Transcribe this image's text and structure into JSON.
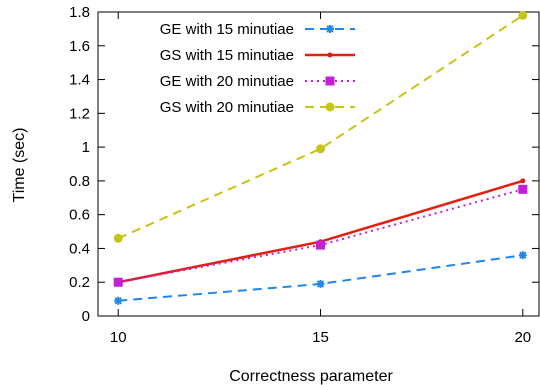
{
  "chart_data": {
    "type": "line",
    "xlabel": "Correctness parameter",
    "ylabel": "Time (sec)",
    "x": [
      10,
      15,
      20
    ],
    "xticks": [
      "10",
      "15",
      "20"
    ],
    "xlim": [
      9.5,
      20.4
    ],
    "ylim": [
      0,
      1.8
    ],
    "yticks": [
      "0",
      "0.2",
      "0.4",
      "0.6",
      "0.8",
      "1",
      "1.2",
      "1.4",
      "1.6",
      "1.8"
    ],
    "grid": false,
    "legend_position": "top-left",
    "series": [
      {
        "name": "GE with 15 minutiae",
        "values": [
          0.09,
          0.19,
          0.36
        ],
        "color": "#1f87e8",
        "dash": "dashed",
        "marker": "star"
      },
      {
        "name": "GS with 15 minutiae",
        "values": [
          0.2,
          0.44,
          0.8
        ],
        "color": "#e51e10",
        "dash": "solid",
        "marker": "dot"
      },
      {
        "name": "GE with 20 minutiae",
        "values": [
          0.2,
          0.42,
          0.75
        ],
        "color": "#c41ed8",
        "dash": "dotted",
        "marker": "square"
      },
      {
        "name": "GS with 20 minutiae",
        "values": [
          0.46,
          0.99,
          1.78
        ],
        "color": "#c8c416",
        "dash": "dashed",
        "marker": "circle"
      }
    ]
  }
}
